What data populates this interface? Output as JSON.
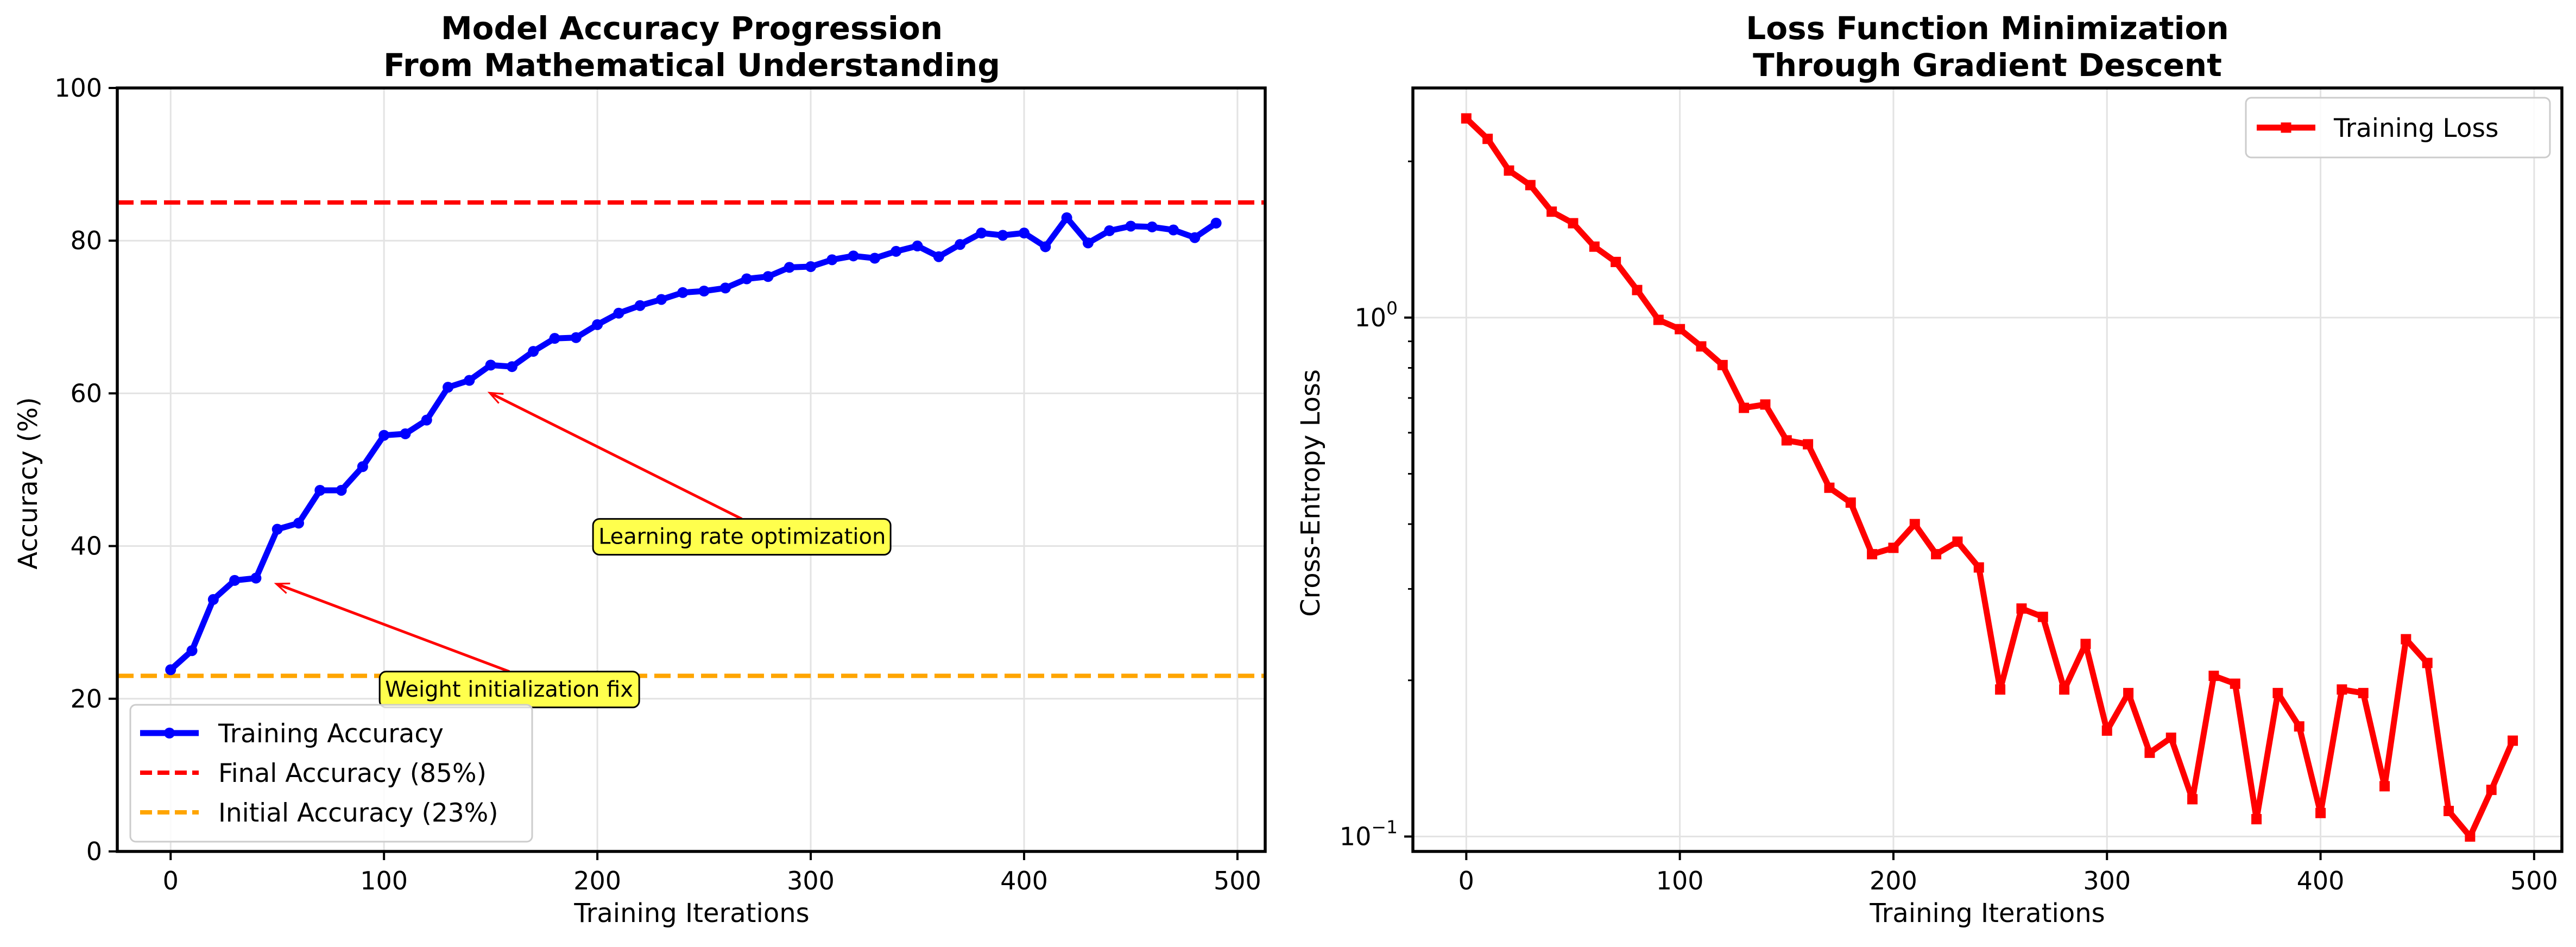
{
  "chart_data": [
    {
      "type": "line",
      "title": "Model Accuracy Progression\nFrom Mathematical Understanding",
      "xlabel": "Training Iterations",
      "ylabel": "Accuracy (%)",
      "xlim": [
        -25,
        513
      ],
      "ylim": [
        0,
        100
      ],
      "xticks": [
        0,
        100,
        200,
        300,
        400,
        500
      ],
      "yticks": [
        0,
        20,
        40,
        60,
        80,
        100
      ],
      "xtick_labels": [
        "0",
        "100",
        "200",
        "300",
        "400",
        "500"
      ],
      "ytick_labels": [
        "0",
        "20",
        "40",
        "60",
        "80",
        "100"
      ],
      "grid": true,
      "legend_position": "lower-left",
      "series": [
        {
          "name": "Training Accuracy",
          "color": "#0000ff",
          "marker": "circle",
          "x": [
            0,
            10,
            20,
            30,
            40,
            50,
            60,
            70,
            80,
            90,
            100,
            110,
            120,
            130,
            140,
            150,
            160,
            170,
            180,
            190,
            200,
            210,
            220,
            230,
            240,
            250,
            260,
            270,
            280,
            290,
            300,
            310,
            320,
            330,
            340,
            350,
            360,
            370,
            380,
            390,
            400,
            410,
            420,
            430,
            440,
            450,
            460,
            470,
            480,
            490
          ],
          "y": [
            23.8,
            26.3,
            33.0,
            35.5,
            35.8,
            42.2,
            43.0,
            47.3,
            47.3,
            50.4,
            54.5,
            54.7,
            56.5,
            60.8,
            61.7,
            63.7,
            63.5,
            65.5,
            67.2,
            67.3,
            69.0,
            70.5,
            71.5,
            72.3,
            73.2,
            73.4,
            73.8,
            75.0,
            75.3,
            76.5,
            76.6,
            77.5,
            78.0,
            77.7,
            78.6,
            79.3,
            77.9,
            79.5,
            81.0,
            80.7,
            81.0,
            79.2,
            83.0,
            79.7,
            81.3,
            81.9,
            81.8,
            81.4,
            80.4,
            82.3
          ]
        }
      ],
      "hlines": [
        {
          "name": "Final Accuracy (85%)",
          "y": 85,
          "color": "#ff0000",
          "style": "dashed"
        },
        {
          "name": "Initial Accuracy (23%)",
          "y": 23,
          "color": "#ffa500",
          "style": "dashed"
        }
      ],
      "annotations": [
        {
          "text": "Learning rate optimization",
          "xy": [
            150,
            60
          ],
          "xytext": [
            200,
            40
          ],
          "arrow_color": "#ff0000",
          "box_color": "#ffff4d"
        },
        {
          "text": "Weight initialization fix",
          "xy": [
            50,
            35
          ],
          "xytext": [
            100,
            20
          ],
          "arrow_color": "#ff0000",
          "box_color": "#ffff4d"
        }
      ]
    },
    {
      "type": "line",
      "title": "Loss Function Minimization\nThrough Gradient Descent",
      "xlabel": "Training Iterations",
      "ylabel": "Cross-Entropy Loss",
      "yscale": "log",
      "xlim": [
        -25,
        513
      ],
      "ylim": [
        0.0936,
        2.77
      ],
      "xticks": [
        0,
        100,
        200,
        300,
        400,
        500
      ],
      "xtick_labels": [
        "0",
        "100",
        "200",
        "300",
        "400",
        "500"
      ],
      "yticks": [
        0.1,
        1
      ],
      "ytick_labels": [
        {
          "base": "10",
          "exp": "−1"
        },
        {
          "base": "10",
          "exp": "0"
        }
      ],
      "grid": true,
      "legend_position": "upper-right",
      "series": [
        {
          "name": "Training Loss",
          "color": "#ff0000",
          "marker": "square",
          "x": [
            0,
            10,
            20,
            30,
            40,
            50,
            60,
            70,
            80,
            90,
            100,
            110,
            120,
            130,
            140,
            150,
            160,
            170,
            180,
            190,
            200,
            210,
            220,
            230,
            240,
            250,
            260,
            270,
            280,
            290,
            300,
            310,
            320,
            330,
            340,
            350,
            360,
            370,
            380,
            390,
            400,
            410,
            420,
            430,
            440,
            450,
            460,
            470,
            480,
            490
          ],
          "y": [
            2.42,
            2.21,
            1.92,
            1.8,
            1.6,
            1.52,
            1.37,
            1.28,
            1.13,
            0.99,
            0.95,
            0.88,
            0.81,
            0.67,
            0.68,
            0.58,
            0.57,
            0.47,
            0.44,
            0.35,
            0.36,
            0.4,
            0.35,
            0.37,
            0.33,
            0.192,
            0.275,
            0.265,
            0.192,
            0.235,
            0.16,
            0.189,
            0.145,
            0.155,
            0.118,
            0.204,
            0.197,
            0.108,
            0.189,
            0.163,
            0.111,
            0.192,
            0.189,
            0.125,
            0.24,
            0.216,
            0.112,
            0.1,
            0.123,
            0.153
          ]
        }
      ]
    }
  ]
}
